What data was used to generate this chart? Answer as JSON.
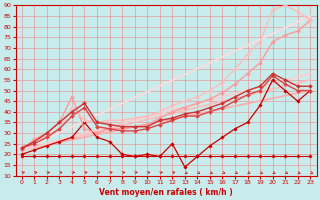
{
  "title": "",
  "xlabel": "Vent moyen/en rafales ( km/h )",
  "bg_color": "#c8ecec",
  "grid_color": "#ee8888",
  "axis_color": "#cc0000",
  "xlim": [
    -0.5,
    23.5
  ],
  "ylim": [
    10,
    90
  ],
  "yticks": [
    10,
    15,
    20,
    25,
    30,
    35,
    40,
    45,
    50,
    55,
    60,
    65,
    70,
    75,
    80,
    85,
    90
  ],
  "xticks": [
    0,
    1,
    2,
    3,
    4,
    5,
    6,
    7,
    8,
    9,
    10,
    11,
    12,
    13,
    14,
    15,
    16,
    17,
    18,
    19,
    20,
    21,
    22,
    23
  ],
  "lines": [
    {
      "x": [
        0,
        1,
        2,
        3,
        4,
        5,
        6,
        7,
        8,
        9,
        10,
        11,
        12,
        13,
        14,
        15,
        16,
        17,
        18,
        19,
        20,
        21,
        22,
        23
      ],
      "y": [
        19,
        19,
        19,
        19,
        19,
        19,
        19,
        19,
        19,
        19,
        19,
        19,
        19,
        19,
        19,
        19,
        19,
        19,
        19,
        19,
        19,
        19,
        19,
        19
      ],
      "color": "#cc0000",
      "lw": 0.8,
      "marker": "D",
      "ms": 1.8
    },
    {
      "x": [
        0,
        1,
        2,
        3,
        4,
        5,
        6,
        7,
        8,
        9,
        10,
        11,
        12,
        13,
        14,
        15,
        16,
        17,
        18,
        19,
        20,
        21,
        22,
        23
      ],
      "y": [
        20,
        22,
        24,
        26,
        28,
        35,
        28,
        26,
        20,
        19,
        20,
        19,
        25,
        14,
        19,
        24,
        28,
        32,
        35,
        43,
        55,
        50,
        45,
        50
      ],
      "color": "#cc0000",
      "lw": 0.9,
      "marker": "D",
      "ms": 1.8
    },
    {
      "x": [
        0,
        23
      ],
      "y": [
        22,
        50
      ],
      "color": "#ffaaaa",
      "lw": 1.2,
      "marker": null,
      "ms": 0
    },
    {
      "x": [
        0,
        23
      ],
      "y": [
        22,
        55
      ],
      "color": "#ffbbbb",
      "lw": 1.2,
      "marker": null,
      "ms": 0
    },
    {
      "x": [
        0,
        23
      ],
      "y": [
        22,
        58
      ],
      "color": "#ffcccc",
      "lw": 1.2,
      "marker": null,
      "ms": 0
    },
    {
      "x": [
        0,
        23
      ],
      "y": [
        22,
        85
      ],
      "color": "#ffdddd",
      "lw": 1.2,
      "marker": null,
      "ms": 0
    },
    {
      "x": [
        0,
        1,
        2,
        3,
        4,
        5,
        6,
        7,
        8,
        9,
        10,
        11,
        12,
        13,
        14,
        15,
        16,
        17,
        18,
        19,
        20,
        21,
        22,
        23
      ],
      "y": [
        22,
        27,
        30,
        35,
        47,
        32,
        30,
        32,
        32,
        33,
        34,
        37,
        40,
        42,
        44,
        46,
        49,
        53,
        58,
        63,
        73,
        76,
        78,
        83
      ],
      "color": "#ff9999",
      "lw": 1.0,
      "marker": "D",
      "ms": 2.0
    },
    {
      "x": [
        0,
        1,
        2,
        3,
        4,
        5,
        6,
        7,
        8,
        9,
        10,
        11,
        12,
        13,
        14,
        15,
        16,
        17,
        18,
        19,
        20,
        21,
        22,
        23
      ],
      "y": [
        23,
        26,
        29,
        32,
        42,
        36,
        35,
        36,
        36,
        37,
        38,
        40,
        43,
        45,
        47,
        50,
        54,
        60,
        67,
        73,
        88,
        90,
        87,
        83
      ],
      "color": "#ffbbbb",
      "lw": 1.0,
      "marker": "D",
      "ms": 2.0
    },
    {
      "x": [
        0,
        1,
        2,
        3,
        4,
        5,
        6,
        7,
        8,
        9,
        10,
        11,
        12,
        13,
        14,
        15,
        16,
        17,
        18,
        19,
        20,
        21,
        22,
        23
      ],
      "y": [
        23,
        25,
        28,
        32,
        38,
        42,
        33,
        32,
        31,
        31,
        32,
        34,
        36,
        38,
        38,
        40,
        42,
        45,
        48,
        50,
        57,
        53,
        50,
        50
      ],
      "color": "#dd4444",
      "lw": 1.0,
      "marker": "D",
      "ms": 2.0
    },
    {
      "x": [
        0,
        1,
        2,
        3,
        4,
        5,
        6,
        7,
        8,
        9,
        10,
        11,
        12,
        13,
        14,
        15,
        16,
        17,
        18,
        19,
        20,
        21,
        22,
        23
      ],
      "y": [
        23,
        26,
        30,
        35,
        40,
        44,
        35,
        34,
        33,
        33,
        33,
        36,
        37,
        39,
        40,
        42,
        44,
        47,
        50,
        52,
        58,
        55,
        52,
        52
      ],
      "color": "#cc3333",
      "lw": 1.0,
      "marker": "D",
      "ms": 2.0
    }
  ],
  "arrow_directions": [
    1,
    1,
    1,
    1,
    1,
    1,
    1,
    1,
    1,
    1,
    1,
    1,
    1,
    0,
    0,
    0,
    0,
    0,
    0,
    0,
    0,
    0,
    0,
    0
  ]
}
